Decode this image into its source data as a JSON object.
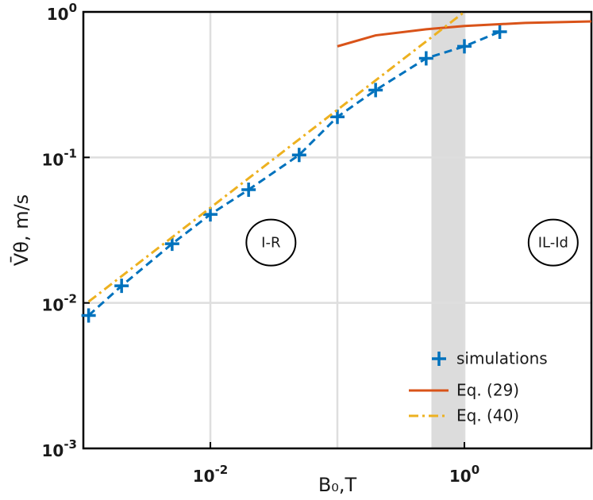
{
  "chart_data": {
    "type": "line",
    "xlabel": "B₀,T",
    "ylabel": "V̄θ, m/s",
    "xscale": "log",
    "yscale": "log",
    "grid": true,
    "legend": "lower right",
    "xlim": [
      0.001,
      10
    ],
    "ylim": [
      0.001,
      1
    ],
    "xticks": [
      {
        "value": 0.01,
        "label": "10^-2"
      },
      {
        "value": 1,
        "label": "10^0"
      }
    ],
    "xminorgrid": [
      0.1
    ],
    "yticks": [
      {
        "value": 0.001,
        "label": "10^-3"
      },
      {
        "value": 0.01,
        "label": "10^-2"
      },
      {
        "value": 0.1,
        "label": "10^-1"
      },
      {
        "value": 1,
        "label": "10^0"
      }
    ],
    "shaded_region": {
      "x": [
        0.55,
        1
      ],
      "color": "#dcdcdc"
    },
    "annotations": [
      {
        "text": "I-R",
        "x": 0.03,
        "y": 0.026
      },
      {
        "text": "IL-Id",
        "x": 5,
        "y": 0.026
      }
    ],
    "series": [
      {
        "name": "simulations",
        "color": "#0072bd",
        "linestyle": "dashed",
        "marker": "plus",
        "x": [
          0.0011,
          0.002,
          0.005,
          0.01,
          0.02,
          0.05,
          0.1,
          0.2,
          0.5,
          1,
          1.9
        ],
        "values": [
          0.0082,
          0.0131,
          0.0255,
          0.0406,
          0.06,
          0.104,
          0.19,
          0.29,
          0.48,
          0.58,
          0.73
        ]
      },
      {
        "name": "Eq. (29)",
        "color": "#d95319",
        "linestyle": "solid",
        "x": [
          0.1,
          0.2,
          0.5,
          1,
          3,
          10
        ],
        "values": [
          0.58,
          0.69,
          0.76,
          0.8,
          0.84,
          0.86
        ]
      },
      {
        "name": "Eq. (40)",
        "color": "#edb120",
        "linestyle": "dashdot",
        "x": [
          0.0011,
          1
        ],
        "values": [
          0.0102,
          1
        ]
      }
    ]
  }
}
